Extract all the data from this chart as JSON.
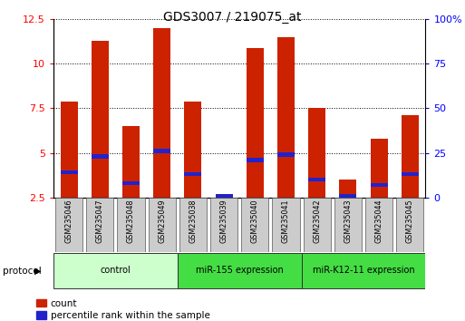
{
  "title": "GDS3007 / 219075_at",
  "samples": [
    "GSM235046",
    "GSM235047",
    "GSM235048",
    "GSM235049",
    "GSM235038",
    "GSM235039",
    "GSM235040",
    "GSM235041",
    "GSM235042",
    "GSM235043",
    "GSM235044",
    "GSM235045"
  ],
  "red_values": [
    7.9,
    11.3,
    6.5,
    12.0,
    7.9,
    2.6,
    10.9,
    11.5,
    7.5,
    3.5,
    5.8,
    7.1
  ],
  "blue_values": [
    3.9,
    4.8,
    3.3,
    5.1,
    3.8,
    2.6,
    4.6,
    4.9,
    3.5,
    2.6,
    3.2,
    3.8
  ],
  "ylim_left": [
    2.5,
    12.5
  ],
  "ylim_right": [
    0,
    100
  ],
  "yticks_left": [
    2.5,
    5.0,
    7.5,
    10.0,
    12.5
  ],
  "ytick_labels_left": [
    "2.5",
    "5",
    "7.5",
    "10",
    "12.5"
  ],
  "yticks_right": [
    0,
    25,
    50,
    75,
    100
  ],
  "ytick_labels_right": [
    "0",
    "25",
    "50",
    "75",
    "100%"
  ],
  "bar_width": 0.55,
  "bar_color_red": "#cc2200",
  "bar_color_blue": "#2222cc",
  "background_color": "#ffffff",
  "legend_count_label": "count",
  "legend_pct_label": "percentile rank within the sample",
  "protocol_label": "protocol",
  "group_data": [
    {
      "label": "control",
      "x_start": -0.5,
      "x_end": 3.5,
      "color": "#ccffcc"
    },
    {
      "label": "miR-155 expression",
      "x_start": 3.5,
      "x_end": 7.5,
      "color": "#44dd44"
    },
    {
      "label": "miR-K12-11 expression",
      "x_start": 7.5,
      "x_end": 11.5,
      "color": "#44dd44"
    }
  ],
  "xlim": [
    -0.5,
    11.5
  ]
}
